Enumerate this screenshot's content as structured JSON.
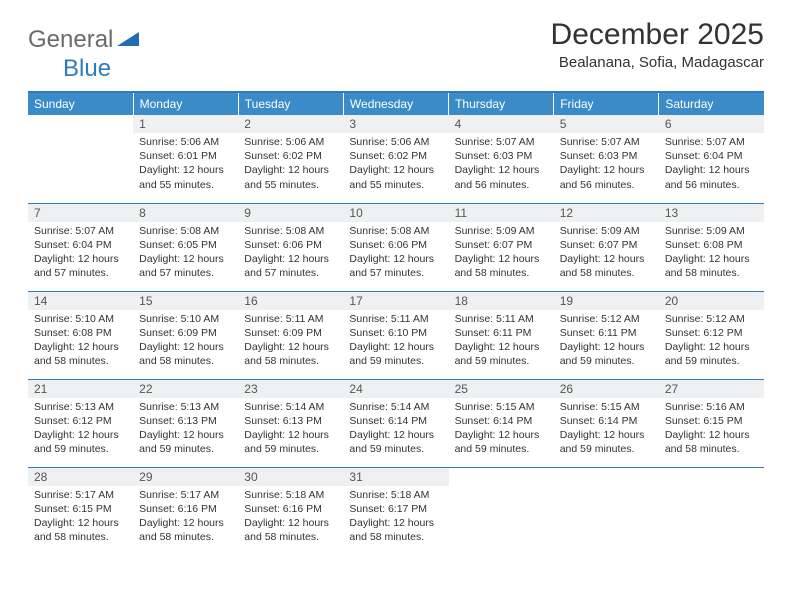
{
  "brand": {
    "part1": "General",
    "part2": "Blue"
  },
  "title": "December 2025",
  "location": "Bealanana, Sofia, Madagascar",
  "colors": {
    "header_bg": "#3b8bc9",
    "border": "#2f7bbf",
    "daynum_bg": "#eef0f1",
    "text": "#333333",
    "logo_gray": "#6a6a6a",
    "logo_blue": "#2f7bbf"
  },
  "dow": [
    "Sunday",
    "Monday",
    "Tuesday",
    "Wednesday",
    "Thursday",
    "Friday",
    "Saturday"
  ],
  "weeks": [
    [
      null,
      {
        "n": "1",
        "sr": "5:06 AM",
        "ss": "6:01 PM",
        "dl": "12 hours and 55 minutes."
      },
      {
        "n": "2",
        "sr": "5:06 AM",
        "ss": "6:02 PM",
        "dl": "12 hours and 55 minutes."
      },
      {
        "n": "3",
        "sr": "5:06 AM",
        "ss": "6:02 PM",
        "dl": "12 hours and 55 minutes."
      },
      {
        "n": "4",
        "sr": "5:07 AM",
        "ss": "6:03 PM",
        "dl": "12 hours and 56 minutes."
      },
      {
        "n": "5",
        "sr": "5:07 AM",
        "ss": "6:03 PM",
        "dl": "12 hours and 56 minutes."
      },
      {
        "n": "6",
        "sr": "5:07 AM",
        "ss": "6:04 PM",
        "dl": "12 hours and 56 minutes."
      }
    ],
    [
      {
        "n": "7",
        "sr": "5:07 AM",
        "ss": "6:04 PM",
        "dl": "12 hours and 57 minutes."
      },
      {
        "n": "8",
        "sr": "5:08 AM",
        "ss": "6:05 PM",
        "dl": "12 hours and 57 minutes."
      },
      {
        "n": "9",
        "sr": "5:08 AM",
        "ss": "6:06 PM",
        "dl": "12 hours and 57 minutes."
      },
      {
        "n": "10",
        "sr": "5:08 AM",
        "ss": "6:06 PM",
        "dl": "12 hours and 57 minutes."
      },
      {
        "n": "11",
        "sr": "5:09 AM",
        "ss": "6:07 PM",
        "dl": "12 hours and 58 minutes."
      },
      {
        "n": "12",
        "sr": "5:09 AM",
        "ss": "6:07 PM",
        "dl": "12 hours and 58 minutes."
      },
      {
        "n": "13",
        "sr": "5:09 AM",
        "ss": "6:08 PM",
        "dl": "12 hours and 58 minutes."
      }
    ],
    [
      {
        "n": "14",
        "sr": "5:10 AM",
        "ss": "6:08 PM",
        "dl": "12 hours and 58 minutes."
      },
      {
        "n": "15",
        "sr": "5:10 AM",
        "ss": "6:09 PM",
        "dl": "12 hours and 58 minutes."
      },
      {
        "n": "16",
        "sr": "5:11 AM",
        "ss": "6:09 PM",
        "dl": "12 hours and 58 minutes."
      },
      {
        "n": "17",
        "sr": "5:11 AM",
        "ss": "6:10 PM",
        "dl": "12 hours and 59 minutes."
      },
      {
        "n": "18",
        "sr": "5:11 AM",
        "ss": "6:11 PM",
        "dl": "12 hours and 59 minutes."
      },
      {
        "n": "19",
        "sr": "5:12 AM",
        "ss": "6:11 PM",
        "dl": "12 hours and 59 minutes."
      },
      {
        "n": "20",
        "sr": "5:12 AM",
        "ss": "6:12 PM",
        "dl": "12 hours and 59 minutes."
      }
    ],
    [
      {
        "n": "21",
        "sr": "5:13 AM",
        "ss": "6:12 PM",
        "dl": "12 hours and 59 minutes."
      },
      {
        "n": "22",
        "sr": "5:13 AM",
        "ss": "6:13 PM",
        "dl": "12 hours and 59 minutes."
      },
      {
        "n": "23",
        "sr": "5:14 AM",
        "ss": "6:13 PM",
        "dl": "12 hours and 59 minutes."
      },
      {
        "n": "24",
        "sr": "5:14 AM",
        "ss": "6:14 PM",
        "dl": "12 hours and 59 minutes."
      },
      {
        "n": "25",
        "sr": "5:15 AM",
        "ss": "6:14 PM",
        "dl": "12 hours and 59 minutes."
      },
      {
        "n": "26",
        "sr": "5:15 AM",
        "ss": "6:14 PM",
        "dl": "12 hours and 59 minutes."
      },
      {
        "n": "27",
        "sr": "5:16 AM",
        "ss": "6:15 PM",
        "dl": "12 hours and 58 minutes."
      }
    ],
    [
      {
        "n": "28",
        "sr": "5:17 AM",
        "ss": "6:15 PM",
        "dl": "12 hours and 58 minutes."
      },
      {
        "n": "29",
        "sr": "5:17 AM",
        "ss": "6:16 PM",
        "dl": "12 hours and 58 minutes."
      },
      {
        "n": "30",
        "sr": "5:18 AM",
        "ss": "6:16 PM",
        "dl": "12 hours and 58 minutes."
      },
      {
        "n": "31",
        "sr": "5:18 AM",
        "ss": "6:17 PM",
        "dl": "12 hours and 58 minutes."
      },
      null,
      null,
      null
    ]
  ],
  "labels": {
    "sunrise": "Sunrise:",
    "sunset": "Sunset:",
    "daylight": "Daylight:"
  }
}
